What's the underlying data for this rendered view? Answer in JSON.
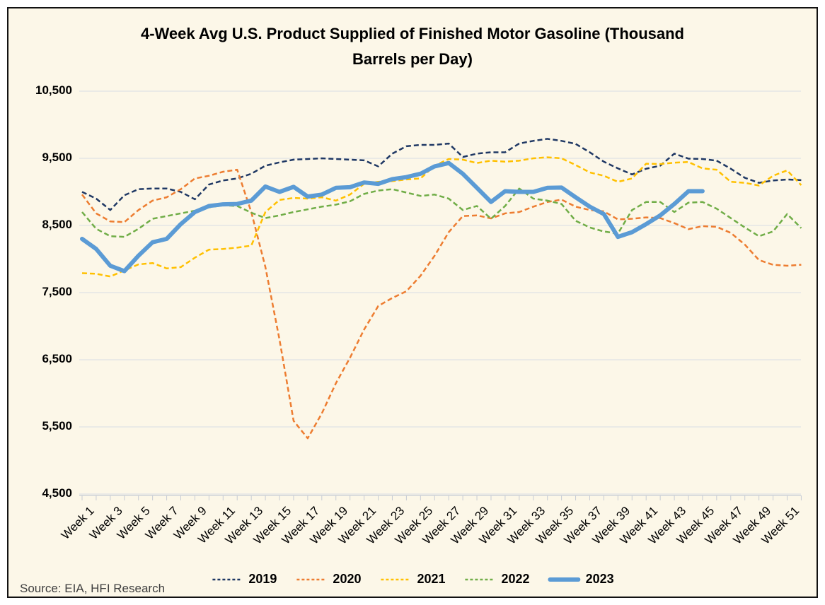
{
  "title": "4-Week Avg U.S. Product Supplied of Finished Motor Gasoline  (Thousand Barrels per Day)",
  "source": "Source: EIA, HFI Research",
  "colors": {
    "background": "#FCF7E8",
    "border": "#111111",
    "gridline": "#D8DCE4",
    "axis": "#C6CBD4",
    "title_text": "#000000",
    "source_text": "#3F3F3F"
  },
  "chart_data": {
    "type": "line",
    "title": "4-Week Avg U.S. Product Supplied of Finished Motor Gasoline  (Thousand Barrels per Day)",
    "xlabel": "",
    "ylabel": "",
    "ylim": [
      4500,
      10500
    ],
    "grid": "horizontal",
    "legend_position": "bottom",
    "y_axis": {
      "tick_values": [
        10500,
        9500,
        8500,
        7500,
        6500,
        5500,
        4500
      ],
      "tick_labels": [
        "10,500",
        "9,500",
        "8,500",
        "7,500",
        "6,500",
        "5,500",
        "4,500"
      ]
    },
    "x_axis": {
      "unit": "week",
      "tick_count": 52,
      "labels": [
        "Week 1",
        "Week 3",
        "Week 5",
        "Week 7",
        "Week 9",
        "Week 11",
        "Week 13",
        "Week 15",
        "Week 17",
        "Week 19",
        "Week 21",
        "Week 23",
        "Week 25",
        "Week 27",
        "Week 29",
        "Week 31",
        "Week 33",
        "Week 35",
        "Week 37",
        "Week 39",
        "Week 41",
        "Week 43",
        "Week 45",
        "Week 47",
        "Week 49",
        "Week 51"
      ]
    },
    "series": [
      {
        "name": "2019",
        "color": "#1F3864",
        "style": "dashed",
        "values": [
          9000,
          8900,
          8730,
          8950,
          9040,
          9050,
          9050,
          9000,
          8890,
          9110,
          9170,
          9200,
          9270,
          9390,
          9440,
          9480,
          9490,
          9500,
          9490,
          9480,
          9470,
          9380,
          9570,
          9680,
          9700,
          9700,
          9720,
          9520,
          9570,
          9590,
          9590,
          9720,
          9760,
          9790,
          9760,
          9715,
          9590,
          9450,
          9350,
          9260,
          9345,
          9390,
          9570,
          9495,
          9490,
          9465,
          9345,
          9210,
          9135,
          9170,
          9185,
          9175
        ]
      },
      {
        "name": "2020",
        "color": "#ED7D31",
        "style": "dashed",
        "values": [
          8960,
          8680,
          8560,
          8550,
          8730,
          8870,
          8920,
          9040,
          9200,
          9240,
          9300,
          9330,
          8700,
          7880,
          6800,
          5590,
          5330,
          5700,
          6150,
          6530,
          6950,
          7300,
          7420,
          7520,
          7750,
          8050,
          8400,
          8640,
          8650,
          8605,
          8680,
          8700,
          8780,
          8850,
          8885,
          8780,
          8730,
          8710,
          8590,
          8600,
          8620,
          8610,
          8535,
          8445,
          8490,
          8480,
          8390,
          8215,
          7985,
          7915,
          7900,
          7915
        ]
      },
      {
        "name": "2021",
        "color": "#FFC000",
        "style": "dashed",
        "values": [
          7790,
          7780,
          7740,
          7830,
          7920,
          7940,
          7860,
          7880,
          8020,
          8140,
          8150,
          8170,
          8200,
          8700,
          8880,
          8910,
          8900,
          8920,
          8870,
          8960,
          9120,
          9150,
          9160,
          9185,
          9200,
          9390,
          9490,
          9480,
          9430,
          9465,
          9450,
          9465,
          9500,
          9515,
          9500,
          9400,
          9290,
          9240,
          9150,
          9200,
          9420,
          9415,
          9435,
          9445,
          9350,
          9330,
          9150,
          9135,
          9095,
          9240,
          9320,
          9100
        ]
      },
      {
        "name": "2022",
        "color": "#70AD47",
        "style": "dashed",
        "values": [
          8700,
          8450,
          8340,
          8330,
          8450,
          8600,
          8640,
          8680,
          8720,
          8770,
          8800,
          8790,
          8690,
          8610,
          8650,
          8700,
          8740,
          8780,
          8810,
          8860,
          8970,
          9020,
          9040,
          8990,
          8940,
          8960,
          8900,
          8730,
          8790,
          8600,
          8790,
          9050,
          8900,
          8870,
          8820,
          8570,
          8470,
          8410,
          8380,
          8730,
          8850,
          8850,
          8700,
          8840,
          8850,
          8750,
          8610,
          8470,
          8340,
          8410,
          8670,
          8460
        ]
      },
      {
        "name": "2023",
        "color": "#5B9BD5",
        "style": "solid",
        "values": [
          8300,
          8150,
          7900,
          7820,
          8050,
          8250,
          8300,
          8520,
          8700,
          8790,
          8815,
          8820,
          8870,
          9080,
          9000,
          9075,
          8930,
          8960,
          9060,
          9070,
          9140,
          9120,
          9190,
          9220,
          9270,
          9380,
          9430,
          9270,
          9060,
          8850,
          9010,
          9000,
          9000,
          9060,
          9065,
          8920,
          8780,
          8670,
          8330,
          8400,
          8520,
          8650,
          8820,
          9010,
          9010
        ]
      }
    ]
  }
}
